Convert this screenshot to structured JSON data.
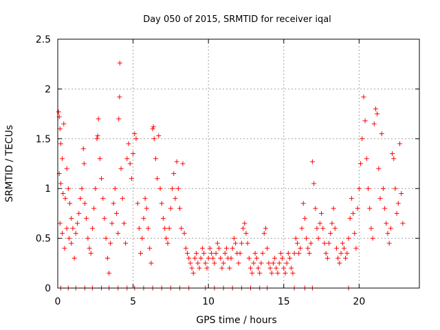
{
  "chart_data": {
    "type": "scatter",
    "title": "Day 050 of 2015, SRMTID for receiver iqal",
    "xlabel": "GPS time / hours",
    "ylabel": "SRMTID / TECUs",
    "xlim": [
      0,
      24
    ],
    "ylim": [
      0,
      2.5
    ],
    "xticks": [
      0,
      5,
      10,
      15,
      20
    ],
    "xtick_labels": [
      "0",
      "5",
      "10",
      "15",
      "20"
    ],
    "yticks": [
      0,
      0.5,
      1,
      1.5,
      2,
      2.5
    ],
    "ytick_labels": [
      "0",
      "0.5",
      "1",
      "1.5",
      "2",
      "2.5"
    ],
    "grid": true,
    "marker": "+",
    "color": "#ff0000",
    "series": [
      {
        "name": "SRMTID",
        "points": [
          [
            0.05,
            1.77
          ],
          [
            0.1,
            1.72
          ],
          [
            0.15,
            1.6
          ],
          [
            0.2,
            1.45
          ],
          [
            0.3,
            1.3
          ],
          [
            0.4,
            1.65
          ],
          [
            0.1,
            1.15
          ],
          [
            0.2,
            1.05
          ],
          [
            0.35,
            0.95
          ],
          [
            0.5,
            0.9
          ],
          [
            0.6,
            1.2
          ],
          [
            0.7,
            1.0
          ],
          [
            0.8,
            0.85
          ],
          [
            0.9,
            0.7
          ],
          [
            1.0,
            0.6
          ],
          [
            0.15,
            0.65
          ],
          [
            0.3,
            0.55
          ],
          [
            0.45,
            0.4
          ],
          [
            0.6,
            0.6
          ],
          [
            0.75,
            0.5
          ],
          [
            0.9,
            0.45
          ],
          [
            1.1,
            0.3
          ],
          [
            1.2,
            0.55
          ],
          [
            1.3,
            0.65
          ],
          [
            1.4,
            0.75
          ],
          [
            1.5,
            0.9
          ],
          [
            1.6,
            1.0
          ],
          [
            1.7,
            1.4
          ],
          [
            1.75,
            1.25
          ],
          [
            1.8,
            0.85
          ],
          [
            1.9,
            0.7
          ],
          [
            2.0,
            0.5
          ],
          [
            2.1,
            0.4
          ],
          [
            2.2,
            0.35
          ],
          [
            2.3,
            0.6
          ],
          [
            2.4,
            0.8
          ],
          [
            2.5,
            1.0
          ],
          [
            2.6,
            1.5
          ],
          [
            2.65,
            1.53
          ],
          [
            2.7,
            1.7
          ],
          [
            2.8,
            1.3
          ],
          [
            2.9,
            1.1
          ],
          [
            3.0,
            0.9
          ],
          [
            3.1,
            0.7
          ],
          [
            3.2,
            0.5
          ],
          [
            3.3,
            0.3
          ],
          [
            3.4,
            0.15
          ],
          [
            3.5,
            0.45
          ],
          [
            3.6,
            0.65
          ],
          [
            3.7,
            0.85
          ],
          [
            3.8,
            1.0
          ],
          [
            3.9,
            0.75
          ],
          [
            4.0,
            0.55
          ],
          [
            4.05,
            1.7
          ],
          [
            4.1,
            1.92
          ],
          [
            4.12,
            2.26
          ],
          [
            4.2,
            1.2
          ],
          [
            4.3,
            0.9
          ],
          [
            4.4,
            0.65
          ],
          [
            4.5,
            0.45
          ],
          [
            4.6,
            1.3
          ],
          [
            4.7,
            1.45
          ],
          [
            4.8,
            1.25
          ],
          [
            4.9,
            1.1
          ],
          [
            5.0,
            1.35
          ],
          [
            5.1,
            1.55
          ],
          [
            5.2,
            1.5
          ],
          [
            5.3,
            0.85
          ],
          [
            5.4,
            0.6
          ],
          [
            5.5,
            0.35
          ],
          [
            5.6,
            0.5
          ],
          [
            5.7,
            0.7
          ],
          [
            5.8,
            0.9
          ],
          [
            5.9,
            0.8
          ],
          [
            6.0,
            0.6
          ],
          [
            6.1,
            0.4
          ],
          [
            6.2,
            0.25
          ],
          [
            6.3,
            1.6
          ],
          [
            6.35,
            1.62
          ],
          [
            6.4,
            1.5
          ],
          [
            6.5,
            1.3
          ],
          [
            6.6,
            1.1
          ],
          [
            6.7,
            1.53
          ],
          [
            6.8,
            1.0
          ],
          [
            6.9,
            0.85
          ],
          [
            7.0,
            0.7
          ],
          [
            7.1,
            0.6
          ],
          [
            7.2,
            0.5
          ],
          [
            7.3,
            0.45
          ],
          [
            7.4,
            0.6
          ],
          [
            7.5,
            0.8
          ],
          [
            7.6,
            1.0
          ],
          [
            7.7,
            1.15
          ],
          [
            7.8,
            0.9
          ],
          [
            7.9,
            1.27
          ],
          [
            8.0,
            1.0
          ],
          [
            8.1,
            0.8
          ],
          [
            8.2,
            0.6
          ],
          [
            8.3,
            1.25
          ],
          [
            8.4,
            0.55
          ],
          [
            8.5,
            0.4
          ],
          [
            8.6,
            0.35
          ],
          [
            8.7,
            0.3
          ],
          [
            8.8,
            0.25
          ],
          [
            8.9,
            0.2
          ],
          [
            9.0,
            0.15
          ],
          [
            9.1,
            0.3
          ],
          [
            9.2,
            0.35
          ],
          [
            9.3,
            0.25
          ],
          [
            9.4,
            0.2
          ],
          [
            9.5,
            0.3
          ],
          [
            9.6,
            0.4
          ],
          [
            9.7,
            0.35
          ],
          [
            9.8,
            0.25
          ],
          [
            9.9,
            0.2
          ],
          [
            10.0,
            0.3
          ],
          [
            10.1,
            0.4
          ],
          [
            10.2,
            0.35
          ],
          [
            10.3,
            0.3
          ],
          [
            10.4,
            0.25
          ],
          [
            10.5,
            0.35
          ],
          [
            10.6,
            0.45
          ],
          [
            10.7,
            0.4
          ],
          [
            10.8,
            0.3
          ],
          [
            10.9,
            0.2
          ],
          [
            11.0,
            0.25
          ],
          [
            11.1,
            0.35
          ],
          [
            11.2,
            0.4
          ],
          [
            11.3,
            0.3
          ],
          [
            11.4,
            0.2
          ],
          [
            11.5,
            0.3
          ],
          [
            11.6,
            0.4
          ],
          [
            11.7,
            0.5
          ],
          [
            11.8,
            0.45
          ],
          [
            11.9,
            0.35
          ],
          [
            12.0,
            0.25
          ],
          [
            12.1,
            0.35
          ],
          [
            12.2,
            0.45
          ],
          [
            12.3,
            0.6
          ],
          [
            12.4,
            0.65
          ],
          [
            12.5,
            0.55
          ],
          [
            12.6,
            0.45
          ],
          [
            12.7,
            0.3
          ],
          [
            12.8,
            0.2
          ],
          [
            12.9,
            0.15
          ],
          [
            13.0,
            0.25
          ],
          [
            13.1,
            0.35
          ],
          [
            13.2,
            0.3
          ],
          [
            13.3,
            0.2
          ],
          [
            13.4,
            0.15
          ],
          [
            13.5,
            0.25
          ],
          [
            13.6,
            0.35
          ],
          [
            13.7,
            0.55
          ],
          [
            13.8,
            0.6
          ],
          [
            13.9,
            0.4
          ],
          [
            14.0,
            0.25
          ],
          [
            14.1,
            0.2
          ],
          [
            14.2,
            0.15
          ],
          [
            14.3,
            0.25
          ],
          [
            14.4,
            0.3
          ],
          [
            14.5,
            0.2
          ],
          [
            14.6,
            0.15
          ],
          [
            14.7,
            0.25
          ],
          [
            14.8,
            0.35
          ],
          [
            14.9,
            0.3
          ],
          [
            15.0,
            0.2
          ],
          [
            15.1,
            0.15
          ],
          [
            15.2,
            0.25
          ],
          [
            15.3,
            0.35
          ],
          [
            15.4,
            0.3
          ],
          [
            15.5,
            0.2
          ],
          [
            15.6,
            0.15
          ],
          [
            15.7,
            0.35
          ],
          [
            15.8,
            0.5
          ],
          [
            15.9,
            0.45
          ],
          [
            16.0,
            0.35
          ],
          [
            16.1,
            0.4
          ],
          [
            16.2,
            0.6
          ],
          [
            16.3,
            0.85
          ],
          [
            16.4,
            0.7
          ],
          [
            16.5,
            0.5
          ],
          [
            16.6,
            0.4
          ],
          [
            16.7,
            0.35
          ],
          [
            16.8,
            0.45
          ],
          [
            16.9,
            1.27
          ],
          [
            17.0,
            1.05
          ],
          [
            17.1,
            0.8
          ],
          [
            17.2,
            0.6
          ],
          [
            17.3,
            0.5
          ],
          [
            17.4,
            0.65
          ],
          [
            17.5,
            0.75
          ],
          [
            17.6,
            0.6
          ],
          [
            17.7,
            0.45
          ],
          [
            17.8,
            0.35
          ],
          [
            17.9,
            0.3
          ],
          [
            18.0,
            0.45
          ],
          [
            18.1,
            0.55
          ],
          [
            18.2,
            0.65
          ],
          [
            18.3,
            0.8
          ],
          [
            18.4,
            0.6
          ],
          [
            18.5,
            0.4
          ],
          [
            18.6,
            0.3
          ],
          [
            18.7,
            0.25
          ],
          [
            18.8,
            0.35
          ],
          [
            18.9,
            0.45
          ],
          [
            19.0,
            0.4
          ],
          [
            19.1,
            0.3
          ],
          [
            19.2,
            0.35
          ],
          [
            19.3,
            0.5
          ],
          [
            19.4,
            0.7
          ],
          [
            19.5,
            0.9
          ],
          [
            19.6,
            0.75
          ],
          [
            19.7,
            0.55
          ],
          [
            19.8,
            0.4
          ],
          [
            19.9,
            0.8
          ],
          [
            20.0,
            1.0
          ],
          [
            20.1,
            1.25
          ],
          [
            20.2,
            1.5
          ],
          [
            20.3,
            1.92
          ],
          [
            20.4,
            1.68
          ],
          [
            20.5,
            1.3
          ],
          [
            20.6,
            1.0
          ],
          [
            20.7,
            0.8
          ],
          [
            20.8,
            0.6
          ],
          [
            20.9,
            0.5
          ],
          [
            21.0,
            1.65
          ],
          [
            21.1,
            1.8
          ],
          [
            21.2,
            1.75
          ],
          [
            21.3,
            1.2
          ],
          [
            21.4,
            0.9
          ],
          [
            21.5,
            1.55
          ],
          [
            21.6,
            1.0
          ],
          [
            21.7,
            0.8
          ],
          [
            21.8,
            0.65
          ],
          [
            21.9,
            0.55
          ],
          [
            22.0,
            0.45
          ],
          [
            22.1,
            0.6
          ],
          [
            22.2,
            1.35
          ],
          [
            22.3,
            1.3
          ],
          [
            22.4,
            1.0
          ],
          [
            22.5,
            0.75
          ],
          [
            22.6,
            0.85
          ],
          [
            22.7,
            1.45
          ],
          [
            22.8,
            0.95
          ],
          [
            22.9,
            0.65
          ],
          [
            0.2,
            0.0
          ],
          [
            0.7,
            0.0
          ],
          [
            1.2,
            0.0
          ],
          [
            1.8,
            0.0
          ],
          [
            2.3,
            0.0
          ],
          [
            2.9,
            0.0
          ],
          [
            3.4,
            0.0
          ],
          [
            4.0,
            0.0
          ],
          [
            4.6,
            0.0
          ],
          [
            5.1,
            0.0
          ],
          [
            5.7,
            0.0
          ],
          [
            6.3,
            0.0
          ],
          [
            6.9,
            0.0
          ],
          [
            7.5,
            0.0
          ],
          [
            8.1,
            0.0
          ],
          [
            8.7,
            0.0
          ],
          [
            9.8,
            0.0
          ],
          [
            10.4,
            0.0
          ],
          [
            11.0,
            0.0
          ],
          [
            11.6,
            0.0
          ],
          [
            12.2,
            0.0
          ],
          [
            12.8,
            0.0
          ],
          [
            13.4,
            0.0
          ],
          [
            13.9,
            0.0
          ],
          [
            15.7,
            0.0
          ],
          [
            16.4,
            0.0
          ],
          [
            16.9,
            0.0
          ],
          [
            19.3,
            0.0
          ]
        ]
      }
    ]
  }
}
